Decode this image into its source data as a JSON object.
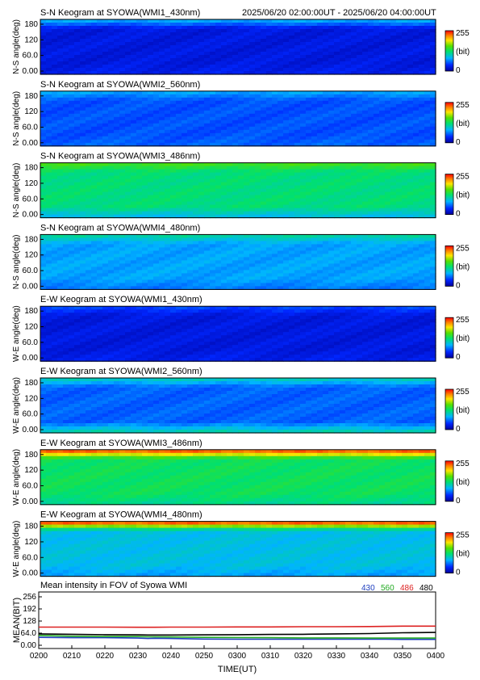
{
  "header": {
    "time_range": "2025/06/20 02:00:00UT - 2025/06/20 04:00:00UT"
  },
  "colorbar": {
    "max": "255",
    "unit": "(bit)",
    "min": "0"
  },
  "keograms": [
    {
      "title": "S-N Keogram at SYOWA(WMI1_430nm)",
      "ylabel": "N-S angle(deg)",
      "yticks": [
        "180",
        "120",
        "60.0",
        "0.00"
      ],
      "base_level": 0.1,
      "top_band": 0.3,
      "bottom_band": 0.12
    },
    {
      "title": "S-N Keogram at SYOWA(WMI2_560nm)",
      "ylabel": "N-S angle(deg)",
      "yticks": [
        "180",
        "120",
        "60.0",
        "0.00"
      ],
      "base_level": 0.2,
      "top_band": 0.3,
      "bottom_band": 0.22
    },
    {
      "title": "S-N Keogram at SYOWA(WMI3_486nm)",
      "ylabel": "N-S angle(deg)",
      "yticks": [
        "180",
        "120",
        "60.0",
        "0.00"
      ],
      "base_level": 0.47,
      "top_band": 0.58,
      "bottom_band": 0.35
    },
    {
      "title": "S-N Keogram at SYOWA(WMI4_480nm)",
      "ylabel": "N-S angle(deg)",
      "yticks": [
        "180",
        "120",
        "60.0",
        "0.00"
      ],
      "base_level": 0.3,
      "top_band": 0.42,
      "bottom_band": 0.25
    },
    {
      "title": "E-W Keogram at SYOWA(WMI1_430nm)",
      "ylabel": "W-E angle(deg)",
      "yticks": [
        "180",
        "120",
        "60.0",
        "0.00"
      ],
      "base_level": 0.1,
      "top_band": 0.18,
      "bottom_band": 0.12
    },
    {
      "title": "E-W Keogram at SYOWA(WMI2_560nm)",
      "ylabel": "W-E angle(deg)",
      "yticks": [
        "180",
        "120",
        "60.0",
        "0.00"
      ],
      "base_level": 0.22,
      "top_band": 0.38,
      "bottom_band": 0.4
    },
    {
      "title": "E-W Keogram at SYOWA(WMI3_486nm)",
      "ylabel": "W-E angle(deg)",
      "yticks": [
        "180",
        "120",
        "60.0",
        "0.00"
      ],
      "base_level": 0.5,
      "top_band": 0.9,
      "bottom_band": 0.45
    },
    {
      "title": "E-W Keogram at SYOWA(WMI4_480nm)",
      "ylabel": "W-E angle(deg)",
      "yticks": [
        "180",
        "120",
        "60.0",
        "0.00"
      ],
      "base_level": 0.35,
      "top_band": 0.9,
      "bottom_band": 0.3
    }
  ],
  "chart_data": {
    "type": "line",
    "title": "Mean intensity in FOV of Syowa WMI",
    "xlabel": "TIME(UT)",
    "ylabel": "MEAN(BIT)",
    "ylim": [
      0,
      256
    ],
    "yticks": [
      "256",
      "192",
      "128",
      "64.0",
      "0.00"
    ],
    "xticks": [
      "0200",
      "0210",
      "0220",
      "0230",
      "0240",
      "0250",
      "0300",
      "0310",
      "0320",
      "0330",
      "0340",
      "0350",
      "0400"
    ],
    "x_minutes": [
      0,
      10,
      20,
      30,
      33,
      35,
      40,
      50,
      60,
      70,
      80,
      90,
      100,
      105,
      110,
      115,
      120
    ],
    "series": [
      {
        "name": "430",
        "color": "#1f3fbf",
        "values": [
          42,
          40,
          40,
          38,
          36,
          37,
          36,
          33,
          32,
          32,
          32,
          32,
          32,
          32,
          31,
          31,
          31
        ]
      },
      {
        "name": "560",
        "color": "#22aa22",
        "values": [
          52,
          48,
          46,
          46,
          45,
          45,
          44,
          42,
          41,
          40,
          39,
          39,
          38,
          38,
          38,
          38,
          38
        ]
      },
      {
        "name": "486",
        "color": "#dd2222",
        "values": [
          96,
          96,
          96,
          95,
          95,
          95,
          96,
          96,
          97,
          97,
          98,
          98,
          99,
          100,
          101,
          101,
          101
        ]
      },
      {
        "name": "480",
        "color": "#000000",
        "values": [
          60,
          58,
          56,
          55,
          54,
          54,
          54,
          55,
          56,
          57,
          58,
          60,
          62,
          64,
          66,
          67,
          68
        ]
      }
    ]
  }
}
